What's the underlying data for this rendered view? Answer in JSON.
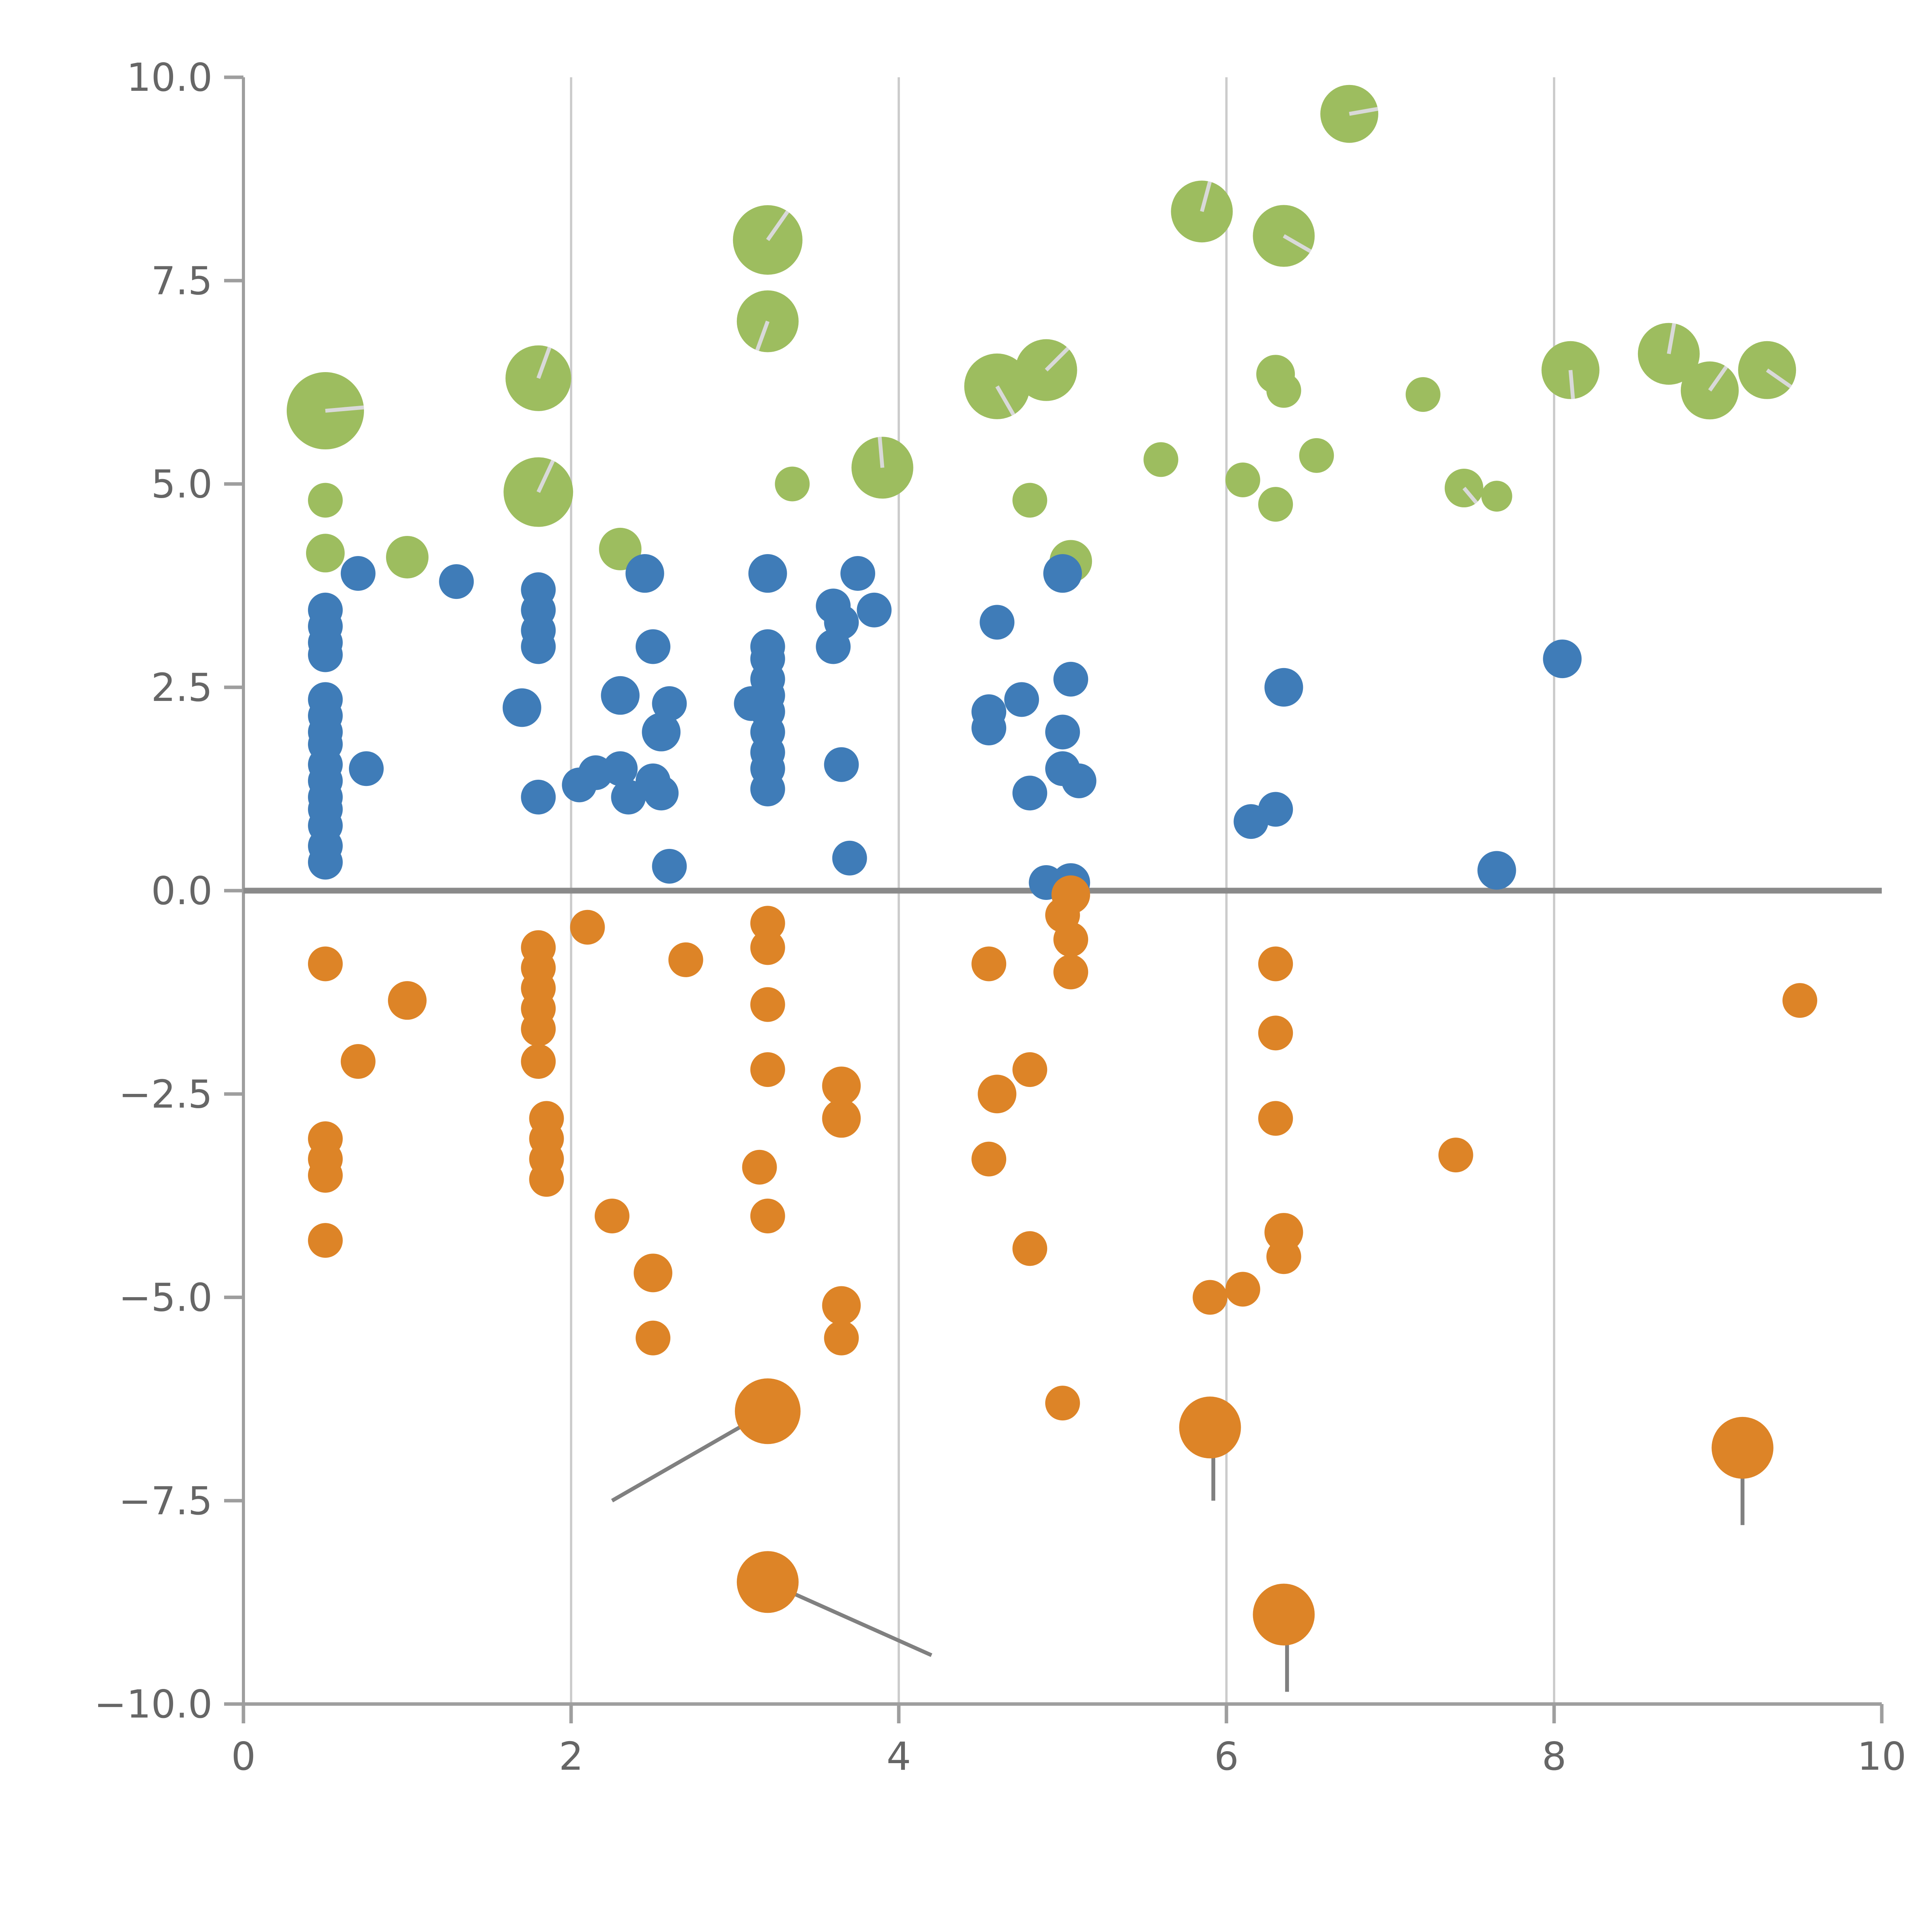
{
  "chart_data": {
    "type": "scatter",
    "title": "",
    "xlabel": "",
    "ylabel": "",
    "xlim": [
      0,
      10
    ],
    "ylim": [
      -10,
      10
    ],
    "grid": "vertical-only",
    "legend_position": "none",
    "x_ticks": [
      {
        "value": 0,
        "label": "0"
      },
      {
        "value": 2,
        "label": "2"
      },
      {
        "value": 4,
        "label": "4"
      },
      {
        "value": 6,
        "label": "6"
      },
      {
        "value": 8,
        "label": "8"
      },
      {
        "value": 10,
        "label": "10"
      }
    ],
    "y_ticks": [
      {
        "value": 10,
        "label": "10.0"
      },
      {
        "value": 7.5,
        "label": "7.5"
      },
      {
        "value": 5,
        "label": "5.0"
      },
      {
        "value": 2.5,
        "label": "2.5"
      },
      {
        "value": 0,
        "label": "0.0"
      },
      {
        "value": -2.5,
        "label": "−2.5"
      },
      {
        "value": -5,
        "label": "−5.0"
      },
      {
        "value": -7.5,
        "label": "−7.5"
      },
      {
        "value": -10,
        "label": "−10.0"
      }
    ],
    "gridlines_x": [
      2,
      4,
      6,
      8
    ],
    "zero_line_y": 0,
    "grid_color": "#cccccc",
    "zero_line_color": "#8a8a8a",
    "axis_color": "#9e9e9e",
    "tick_label_color": "#666666",
    "hand_color": "#d9d9d9",
    "stem_color": "#808080",
    "series": [
      {
        "name": "green",
        "color": "#9dbd5f",
        "points": [
          [
            0.5,
            5.9,
            20
          ],
          [
            0.5,
            4.8,
            9
          ],
          [
            0.5,
            4.15,
            10
          ],
          [
            1.0,
            4.1,
            11
          ],
          [
            1.8,
            6.3,
            17
          ],
          [
            1.8,
            4.9,
            18
          ],
          [
            2.3,
            4.2,
            11
          ],
          [
            3.2,
            8.0,
            18
          ],
          [
            3.2,
            7.0,
            16
          ],
          [
            3.35,
            5.0,
            9
          ],
          [
            3.9,
            5.2,
            16
          ],
          [
            4.6,
            6.2,
            17
          ],
          [
            4.9,
            6.4,
            16
          ],
          [
            4.8,
            4.8,
            9
          ],
          [
            5.05,
            4.05,
            11
          ],
          [
            5.6,
            5.3,
            9
          ],
          [
            5.85,
            8.35,
            16
          ],
          [
            6.35,
            8.05,
            16
          ],
          [
            6.3,
            6.35,
            10
          ],
          [
            6.35,
            6.15,
            9
          ],
          [
            6.1,
            5.05,
            9
          ],
          [
            6.3,
            4.75,
            9
          ],
          [
            6.55,
            5.35,
            9
          ],
          [
            6.75,
            9.55,
            15
          ],
          [
            7.2,
            6.1,
            9
          ],
          [
            7.45,
            4.95,
            10
          ],
          [
            7.65,
            4.85,
            8
          ],
          [
            8.1,
            6.4,
            15
          ],
          [
            8.7,
            6.6,
            16
          ],
          [
            8.95,
            6.15,
            15
          ],
          [
            9.3,
            6.4,
            15
          ]
        ]
      },
      {
        "name": "blue",
        "color": "#3f7cb8",
        "points": [
          [
            0.5,
            3.45,
            9
          ],
          [
            0.5,
            3.25,
            9
          ],
          [
            0.5,
            3.05,
            9
          ],
          [
            0.5,
            2.9,
            9
          ],
          [
            0.5,
            2.35,
            9
          ],
          [
            0.5,
            2.15,
            9
          ],
          [
            0.5,
            1.95,
            9
          ],
          [
            0.5,
            1.8,
            9
          ],
          [
            0.5,
            1.55,
            9
          ],
          [
            0.5,
            1.35,
            9
          ],
          [
            0.5,
            1.15,
            9
          ],
          [
            0.5,
            1.0,
            9
          ],
          [
            0.5,
            0.8,
            9
          ],
          [
            0.5,
            0.55,
            9
          ],
          [
            0.5,
            0.35,
            9
          ],
          [
            0.7,
            3.9,
            9
          ],
          [
            0.75,
            1.5,
            9
          ],
          [
            1.3,
            3.8,
            9
          ],
          [
            1.7,
            2.25,
            10
          ],
          [
            1.8,
            3.7,
            9
          ],
          [
            1.8,
            3.45,
            9
          ],
          [
            1.8,
            3.2,
            9
          ],
          [
            1.8,
            3.0,
            9
          ],
          [
            1.8,
            1.15,
            9
          ],
          [
            2.05,
            1.3,
            9
          ],
          [
            2.15,
            1.45,
            9
          ],
          [
            2.3,
            2.4,
            10
          ],
          [
            2.3,
            1.5,
            9
          ],
          [
            2.35,
            1.15,
            9
          ],
          [
            2.45,
            3.9,
            10
          ],
          [
            2.5,
            3.0,
            9
          ],
          [
            2.5,
            1.35,
            9
          ],
          [
            2.55,
            1.2,
            9
          ],
          [
            2.55,
            1.95,
            10
          ],
          [
            2.6,
            2.3,
            9
          ],
          [
            2.6,
            0.3,
            9
          ],
          [
            3.2,
            3.9,
            10
          ],
          [
            3.2,
            3.0,
            9
          ],
          [
            3.2,
            2.85,
            9
          ],
          [
            3.2,
            2.6,
            9
          ],
          [
            3.2,
            2.4,
            9
          ],
          [
            3.2,
            2.2,
            9
          ],
          [
            3.2,
            1.95,
            9
          ],
          [
            3.2,
            1.7,
            9
          ],
          [
            3.2,
            1.5,
            9
          ],
          [
            3.2,
            1.25,
            9
          ],
          [
            3.1,
            2.3,
            9
          ],
          [
            3.6,
            3.5,
            9
          ],
          [
            3.65,
            3.3,
            9
          ],
          [
            3.6,
            3.0,
            9
          ],
          [
            3.65,
            1.55,
            9
          ],
          [
            3.7,
            0.4,
            9
          ],
          [
            3.75,
            3.9,
            9
          ],
          [
            3.85,
            3.45,
            9
          ],
          [
            4.55,
            2.2,
            9
          ],
          [
            4.55,
            2.0,
            9
          ],
          [
            4.6,
            3.3,
            9
          ],
          [
            4.75,
            2.35,
            9
          ],
          [
            4.8,
            1.2,
            9
          ],
          [
            4.9,
            0.1,
            9
          ],
          [
            5.0,
            3.9,
            10
          ],
          [
            5.05,
            2.6,
            9
          ],
          [
            5.0,
            1.95,
            9
          ],
          [
            5.0,
            1.5,
            9
          ],
          [
            5.1,
            1.35,
            9
          ],
          [
            5.05,
            0.1,
            10
          ],
          [
            6.15,
            0.85,
            9
          ],
          [
            6.3,
            1.0,
            9
          ],
          [
            6.35,
            2.5,
            10
          ],
          [
            7.65,
            0.25,
            10
          ],
          [
            8.05,
            2.85,
            10
          ]
        ]
      },
      {
        "name": "orange",
        "color": "#dd8427",
        "points": [
          [
            0.5,
            -0.9,
            9
          ],
          [
            0.5,
            -3.05,
            9
          ],
          [
            0.5,
            -3.3,
            9
          ],
          [
            0.5,
            -3.5,
            9
          ],
          [
            0.5,
            -4.3,
            9
          ],
          [
            0.7,
            -2.1,
            9
          ],
          [
            1.0,
            -1.35,
            10
          ],
          [
            1.8,
            -0.7,
            9
          ],
          [
            1.8,
            -0.95,
            9
          ],
          [
            1.8,
            -1.2,
            9
          ],
          [
            1.8,
            -1.45,
            9
          ],
          [
            1.8,
            -1.7,
            9
          ],
          [
            1.8,
            -2.1,
            9
          ],
          [
            1.85,
            -2.8,
            9
          ],
          [
            1.85,
            -3.05,
            9
          ],
          [
            1.85,
            -3.3,
            9
          ],
          [
            1.85,
            -3.55,
            9
          ],
          [
            2.1,
            -0.45,
            9
          ],
          [
            2.25,
            -4.0,
            9
          ],
          [
            2.5,
            -4.7,
            10
          ],
          [
            2.5,
            -5.5,
            9
          ],
          [
            2.7,
            -0.85,
            9
          ],
          [
            3.2,
            -0.4,
            9
          ],
          [
            3.2,
            -0.7,
            9
          ],
          [
            3.2,
            -1.4,
            9
          ],
          [
            3.2,
            -2.2,
            9
          ],
          [
            3.15,
            -3.4,
            9
          ],
          [
            3.2,
            -4.0,
            9
          ],
          [
            3.2,
            -6.4,
            17
          ],
          [
            3.2,
            -8.5,
            16
          ],
          [
            3.65,
            -2.4,
            10
          ],
          [
            3.65,
            -2.8,
            10
          ],
          [
            3.65,
            -5.1,
            10
          ],
          [
            3.65,
            -5.5,
            9
          ],
          [
            4.55,
            -0.9,
            9
          ],
          [
            4.6,
            -2.5,
            10
          ],
          [
            4.55,
            -3.3,
            9
          ],
          [
            4.8,
            -2.2,
            9
          ],
          [
            4.8,
            -4.4,
            9
          ],
          [
            5.0,
            -0.3,
            9
          ],
          [
            5.05,
            -0.05,
            10
          ],
          [
            5.05,
            -0.6,
            9
          ],
          [
            5.05,
            -1.0,
            9
          ],
          [
            5.0,
            -6.3,
            9
          ],
          [
            5.9,
            -5.0,
            9
          ],
          [
            6.1,
            -4.9,
            9
          ],
          [
            5.9,
            -6.6,
            16
          ],
          [
            6.3,
            -0.9,
            9
          ],
          [
            6.3,
            -1.75,
            9
          ],
          [
            6.3,
            -2.8,
            9
          ],
          [
            6.35,
            -4.2,
            10
          ],
          [
            6.35,
            -4.5,
            9
          ],
          [
            6.35,
            -8.9,
            16
          ],
          [
            7.4,
            -3.25,
            9
          ],
          [
            9.15,
            -6.85,
            16
          ],
          [
            9.5,
            -1.35,
            9
          ]
        ]
      }
    ],
    "hands": [
      {
        "x": 0.5,
        "y": 5.9,
        "angle": 5,
        "len": 20
      },
      {
        "x": 1.8,
        "y": 6.3,
        "angle": 70,
        "len": 17
      },
      {
        "x": 1.8,
        "y": 4.9,
        "angle": 65,
        "len": 18
      },
      {
        "x": 3.2,
        "y": 8.0,
        "angle": 55,
        "len": 18
      },
      {
        "x": 3.2,
        "y": 7.0,
        "angle": 250,
        "len": 16
      },
      {
        "x": 3.9,
        "y": 5.2,
        "angle": 95,
        "len": 16
      },
      {
        "x": 4.6,
        "y": 6.2,
        "angle": -60,
        "len": 17
      },
      {
        "x": 4.9,
        "y": 6.4,
        "angle": 45,
        "len": 16
      },
      {
        "x": 5.85,
        "y": 8.35,
        "angle": 75,
        "len": 16
      },
      {
        "x": 6.35,
        "y": 8.05,
        "angle": -30,
        "len": 16
      },
      {
        "x": 6.75,
        "y": 9.55,
        "angle": 10,
        "len": 15
      },
      {
        "x": 7.45,
        "y": 4.95,
        "angle": -50,
        "len": 10
      },
      {
        "x": 8.1,
        "y": 6.4,
        "angle": -85,
        "len": 15
      },
      {
        "x": 8.7,
        "y": 6.6,
        "angle": 80,
        "len": 16
      },
      {
        "x": 8.95,
        "y": 6.15,
        "angle": 55,
        "len": 15
      },
      {
        "x": 9.3,
        "y": 6.4,
        "angle": -35,
        "len": 15
      }
    ],
    "stems": [
      {
        "x1": 3.2,
        "y1": -6.4,
        "x2": 2.25,
        "y2": -7.5
      },
      {
        "x1": 3.2,
        "y1": -8.5,
        "x2": 4.2,
        "y2": -9.4
      },
      {
        "x1": 5.92,
        "y1": -6.6,
        "x2": 5.92,
        "y2": -7.5
      },
      {
        "x1": 6.37,
        "y1": -8.9,
        "x2": 6.37,
        "y2": -9.85
      },
      {
        "x1": 9.15,
        "y1": -6.85,
        "x2": 9.15,
        "y2": -7.8
      }
    ]
  }
}
